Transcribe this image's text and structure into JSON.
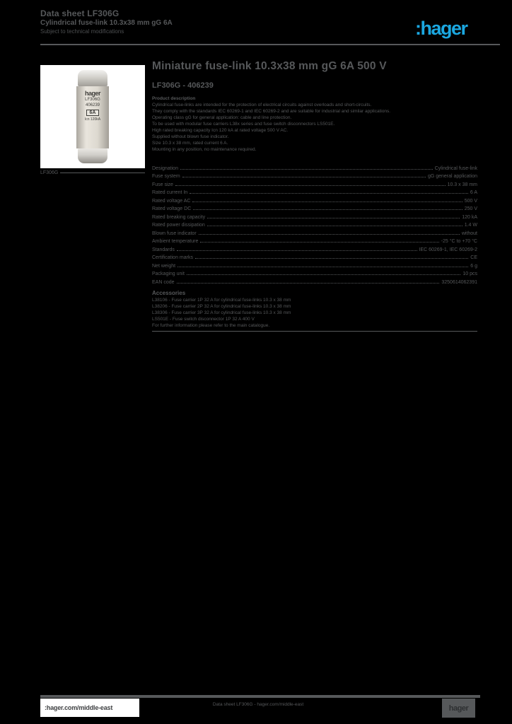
{
  "header": {
    "line1": "Data sheet LF306G",
    "line2": "Cylindrical fuse-link 10.3x38 mm gG 6A",
    "line3": "Subject to technical modifications",
    "logo_text": ":hager",
    "logo_color": "#1ba7e0"
  },
  "product_image": {
    "brand": "hager",
    "reference": "LF306G",
    "code": "406239",
    "rating": "6A",
    "breaking_capacity": "Icn 120kA",
    "caption": "LF306G"
  },
  "main": {
    "title": "Miniature fuse-link 10.3x38 mm gG 6A 500 V",
    "reference": "LF306G - 406239",
    "description_label": "Product description",
    "description_lines": [
      "Cylindrical fuse-links are intended for the protection of electrical circuits against overloads and short-circuits.",
      "They comply with the standards IEC 60269-1 and IEC 60269-2 and are suitable for industrial and similar applications.",
      "Operating class gG for general application: cable and line protection.",
      "To be used with modular fuse carriers L38x series and fuse switch disconnectors LS501E.",
      "High rated breaking capacity Icn 120 kA at rated voltage 500 V AC.",
      "Supplied without blown fuse indicator.",
      "Size 10.3 x 38 mm, rated current 6 A.",
      "Mounting in any position, no maintenance required."
    ],
    "specs": [
      {
        "label": "Designation",
        "value": "Cylindrical fuse-link"
      },
      {
        "label": "Fuse system",
        "value": "gG general application"
      },
      {
        "label": "Fuse size",
        "value": "10.3 x 38 mm"
      },
      {
        "label": "Rated current In",
        "value": "6 A"
      },
      {
        "label": "Rated voltage AC",
        "value": "500 V"
      },
      {
        "label": "Rated voltage DC",
        "value": "250 V"
      },
      {
        "label": "Rated breaking capacity",
        "value": "120 kA"
      },
      {
        "label": "Rated power dissipation",
        "value": "1.4 W"
      },
      {
        "label": "Blown fuse indicator",
        "value": "without"
      },
      {
        "label": "Ambient temperature",
        "value": "-25 °C to +70 °C"
      },
      {
        "label": "Standards",
        "value": "IEC 60269-1, IEC 60269-2"
      },
      {
        "label": "Certification marks",
        "value": "CE"
      },
      {
        "label": "Net weight",
        "value": "6 g"
      },
      {
        "label": "Packaging unit",
        "value": "10 pcs"
      },
      {
        "label": "EAN code",
        "value": "3250614062391"
      }
    ],
    "section2_heading": "Accessories",
    "section2_lines": [
      "L38106 - Fuse carrier 1P 32 A for cylindrical fuse-links 10.3 x 38 mm",
      "L38206 - Fuse carrier 2P 32 A for cylindrical fuse-links 10.3 x 38 mm",
      "L38306 - Fuse carrier 3P 32 A for cylindrical fuse-links 10.3 x 38 mm",
      "LS501E - Fuse switch disconnector 1P 32 A 400 V",
      "For further information please refer to the main catalogue."
    ]
  },
  "footer": {
    "website": ":hager.com/middle-east",
    "center_line": "Data sheet LF306G - hager.com/middle-east",
    "logo_block": "hager"
  }
}
